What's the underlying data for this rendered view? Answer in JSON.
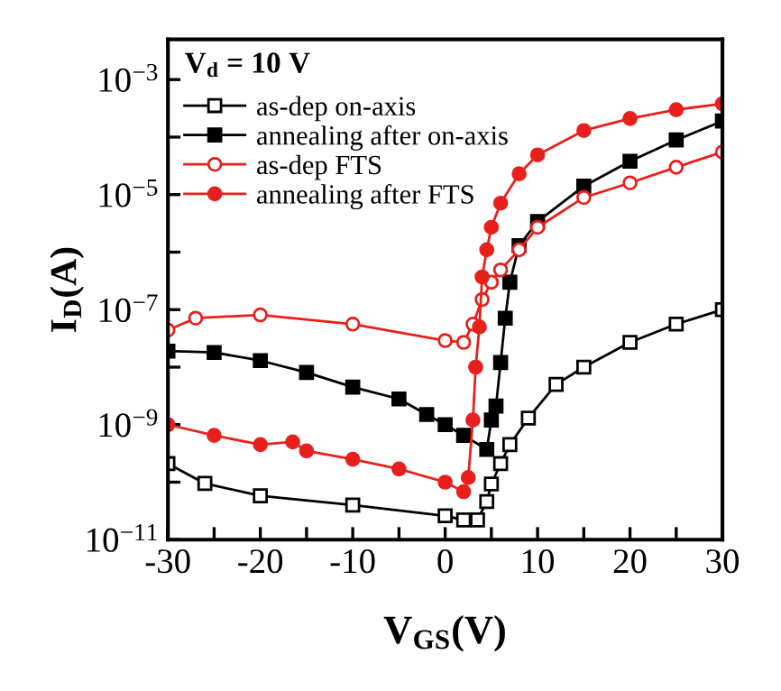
{
  "chart_data": {
    "type": "line",
    "xlabel": "V$_{GS}$(V)",
    "ylabel": "I$_{D}$(A)",
    "annotations": [
      "V$_{d}$ = 10 V"
    ],
    "log": "y",
    "legend": "top left",
    "grid": false,
    "xlim": [
      -30,
      30
    ],
    "xticks": [
      -30,
      {
        "value": -25,
        "label": null
      },
      -20,
      {
        "value": -15,
        "label": null
      },
      -10,
      {
        "value": -5,
        "label": null
      },
      0,
      {
        "value": 5,
        "label": null
      },
      10,
      {
        "value": 15,
        "label": null
      },
      20,
      {
        "value": 25,
        "label": null
      },
      30
    ],
    "ylim": [
      1e-11,
      0.005
    ],
    "yticks": [
      {
        "value": 1e-11,
        "label": "10$^{−11}$"
      },
      {
        "value": 1e-10,
        "label": null
      },
      {
        "value": 1e-09,
        "label": "10$^{−9}$"
      },
      {
        "value": 1e-08,
        "label": null
      },
      {
        "value": 1e-07,
        "label": "10$^{−7}$"
      },
      {
        "value": 1e-06,
        "label": null
      },
      {
        "value": 1e-05,
        "label": "10$^{−5}$"
      },
      {
        "value": 0.0001,
        "label": null
      },
      {
        "value": 0.001,
        "label": "10$^{−3}$"
      }
    ],
    "series": [
      {
        "name": "as-dep on-axis",
        "color": "#000000",
        "marker": "square",
        "x": [
          -30,
          -26,
          -20,
          -10,
          0,
          2,
          3.5,
          4.5,
          5,
          6,
          7,
          9,
          12,
          15,
          20,
          25,
          30
        ],
        "values": [
          2.1e-10,
          9.5e-11,
          5.8e-11,
          4e-11,
          2.6e-11,
          2.2e-11,
          2.2e-11,
          4.6e-11,
          9.3e-11,
          2.1e-10,
          4.5e-10,
          1.3e-09,
          5e-09,
          1e-08,
          2.7e-08,
          5.6e-08,
          1e-07
        ]
      },
      {
        "name": "annealing after on-axis",
        "color": "#000000",
        "marker": "square",
        "x": [
          -30,
          -25,
          -20,
          -15,
          -10,
          -5,
          -2,
          0,
          2,
          4.5,
          5,
          5.5,
          6,
          6.5,
          7,
          8,
          10,
          15,
          20,
          25,
          30
        ],
        "values": [
          1.9e-08,
          1.8e-08,
          1.3e-08,
          8.1e-09,
          4.5e-09,
          2.8e-09,
          1.5e-09,
          1e-09,
          6.5e-10,
          3.7e-10,
          1.2e-09,
          2.1e-09,
          1.2e-08,
          7.1e-08,
          3e-07,
          1.3e-06,
          3.4e-06,
          1.4e-05,
          3.8e-05,
          8.9e-05,
          0.00019
        ]
      },
      {
        "name": "as-dep FTS",
        "color": "#e8201c",
        "marker": "circle",
        "x": [
          -30,
          -27,
          -20,
          -10,
          0,
          2,
          3,
          4,
          5,
          6,
          8,
          10,
          15,
          20,
          25,
          30
        ],
        "values": [
          4.4e-08,
          7.1e-08,
          8.1e-08,
          5.6e-08,
          2.9e-08,
          2.7e-08,
          5.6e-08,
          1.5e-07,
          3e-07,
          4.9e-07,
          1.1e-06,
          2.7e-06,
          8.9e-06,
          1.6e-05,
          3e-05,
          5.5e-05
        ]
      },
      {
        "name": "annealing after FTS",
        "color": "#e8201c",
        "marker": "circle",
        "x": [
          -30,
          -25,
          -20,
          -16.5,
          -15,
          -10,
          -5,
          0,
          2,
          2.5,
          3,
          3.3,
          3.7,
          4,
          4.5,
          5,
          6,
          8,
          10,
          15,
          20,
          25,
          30
        ],
        "values": [
          1e-09,
          6.5e-10,
          4.5e-10,
          5e-10,
          3.5e-10,
          2.5e-10,
          1.7e-10,
          1e-10,
          6.8e-11,
          1.2e-10,
          1.2e-09,
          1e-08,
          5e-08,
          3.7e-07,
          1.1e-06,
          2.7e-06,
          7.1e-06,
          2.3e-05,
          4.9e-05,
          0.00013,
          0.00021,
          0.0003,
          0.00038
        ]
      }
    ]
  }
}
